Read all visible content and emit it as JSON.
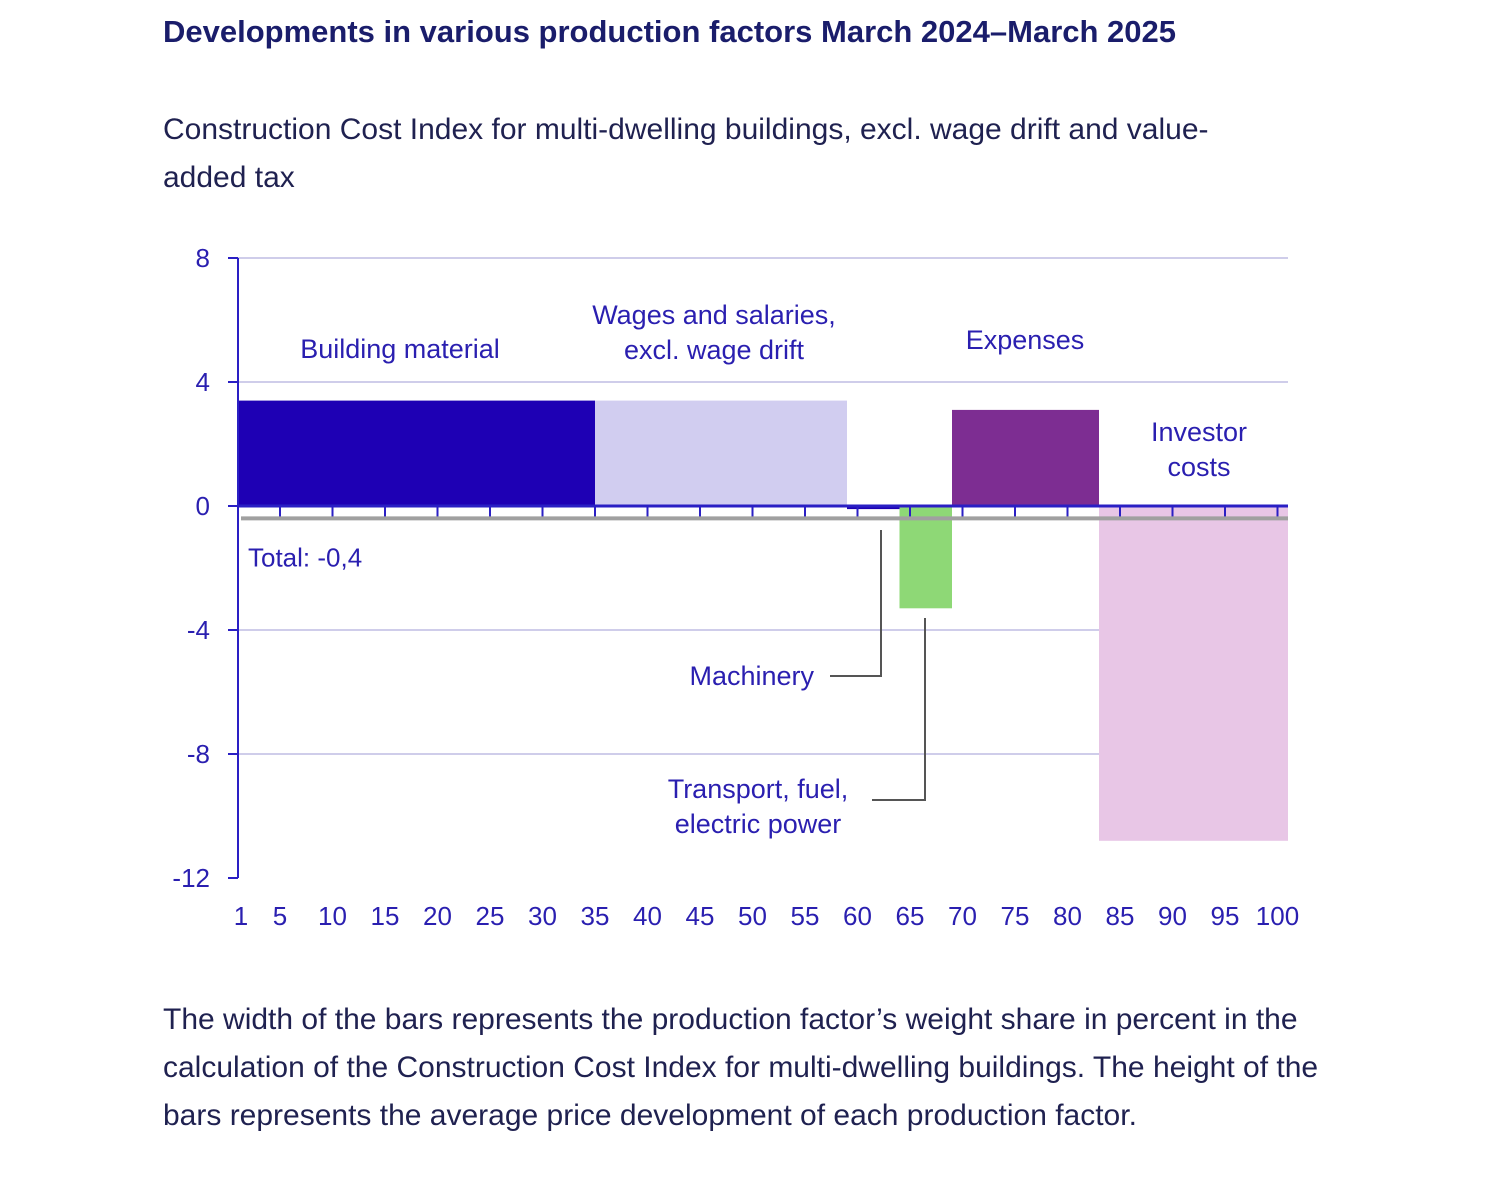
{
  "title": "Developments in various production factors March 2024–March 2025",
  "subtitle": "Construction Cost Index for multi-dwelling buildings, excl. wage drift and value-added tax",
  "footnote": "The width of the bars represents the production factor’s weight share in percent in the calculation of the Construction Cost Index for multi-dwelling buildings. The height of the bars represents the average price development of each production factor.",
  "colors": {
    "axis": "#2a1fc4",
    "grid": "#cfcdea",
    "text": "#2a1fb0",
    "total_line": "#a0a0a0",
    "leader": "#555555"
  },
  "chart_data": {
    "type": "bar",
    "variant": "variable-width",
    "title": "Developments in various production factors March 2024–March 2025",
    "subtitle": "Construction Cost Index for multi-dwelling buildings, excl. wage drift and value-added tax",
    "xlabel": "",
    "ylabel": "",
    "xlim": [
      1,
      100
    ],
    "ylim": [
      -12,
      8
    ],
    "x_ticks": [
      1,
      5,
      10,
      15,
      20,
      25,
      30,
      35,
      40,
      45,
      50,
      55,
      60,
      65,
      70,
      75,
      80,
      85,
      90,
      95,
      100
    ],
    "x_ticks_labels": [
      "1",
      "5",
      "10",
      "15",
      "20",
      "25",
      "30",
      "35",
      "40",
      "45",
      "50",
      "55",
      "60",
      "65",
      "70",
      "75",
      "80",
      "85",
      "90",
      "95",
      "100"
    ],
    "y_ticks": [
      8,
      4,
      0,
      -4,
      -8,
      -12
    ],
    "y_ticks_labels": [
      "8",
      "4",
      "0",
      "-4",
      "-8",
      "-12"
    ],
    "grid": true,
    "total": {
      "value": -0.4,
      "label": "Total: -0,4"
    },
    "series": [
      {
        "name": "Building material",
        "label_lines": [
          "Building material"
        ],
        "x_start": 1,
        "x_end": 35,
        "value": 3.4,
        "color": "#1e00b4"
      },
      {
        "name": "Wages and salaries, excl. wage drift",
        "label_lines": [
          "Wages and salaries,",
          "excl. wage drift"
        ],
        "x_start": 35,
        "x_end": 59,
        "value": 3.4,
        "color": "#d1cdf0"
      },
      {
        "name": "Machinery",
        "label_lines": [
          "Machinery"
        ],
        "x_start": 59,
        "x_end": 64,
        "value": -0.1,
        "color": "#1e00b4"
      },
      {
        "name": "Transport, fuel, electric power",
        "label_lines": [
          "Transport, fuel,",
          "electric power"
        ],
        "x_start": 64,
        "x_end": 69,
        "value": -3.3,
        "color": "#8ed876"
      },
      {
        "name": "Expenses",
        "label_lines": [
          "Expenses"
        ],
        "x_start": 69,
        "x_end": 83,
        "value": 3.1,
        "color": "#7d2d92"
      },
      {
        "name": "Investor costs",
        "label_lines": [
          "Investor",
          "costs"
        ],
        "x_start": 83,
        "x_end": 101,
        "value": -10.8,
        "color": "#e8c6e6"
      }
    ]
  }
}
